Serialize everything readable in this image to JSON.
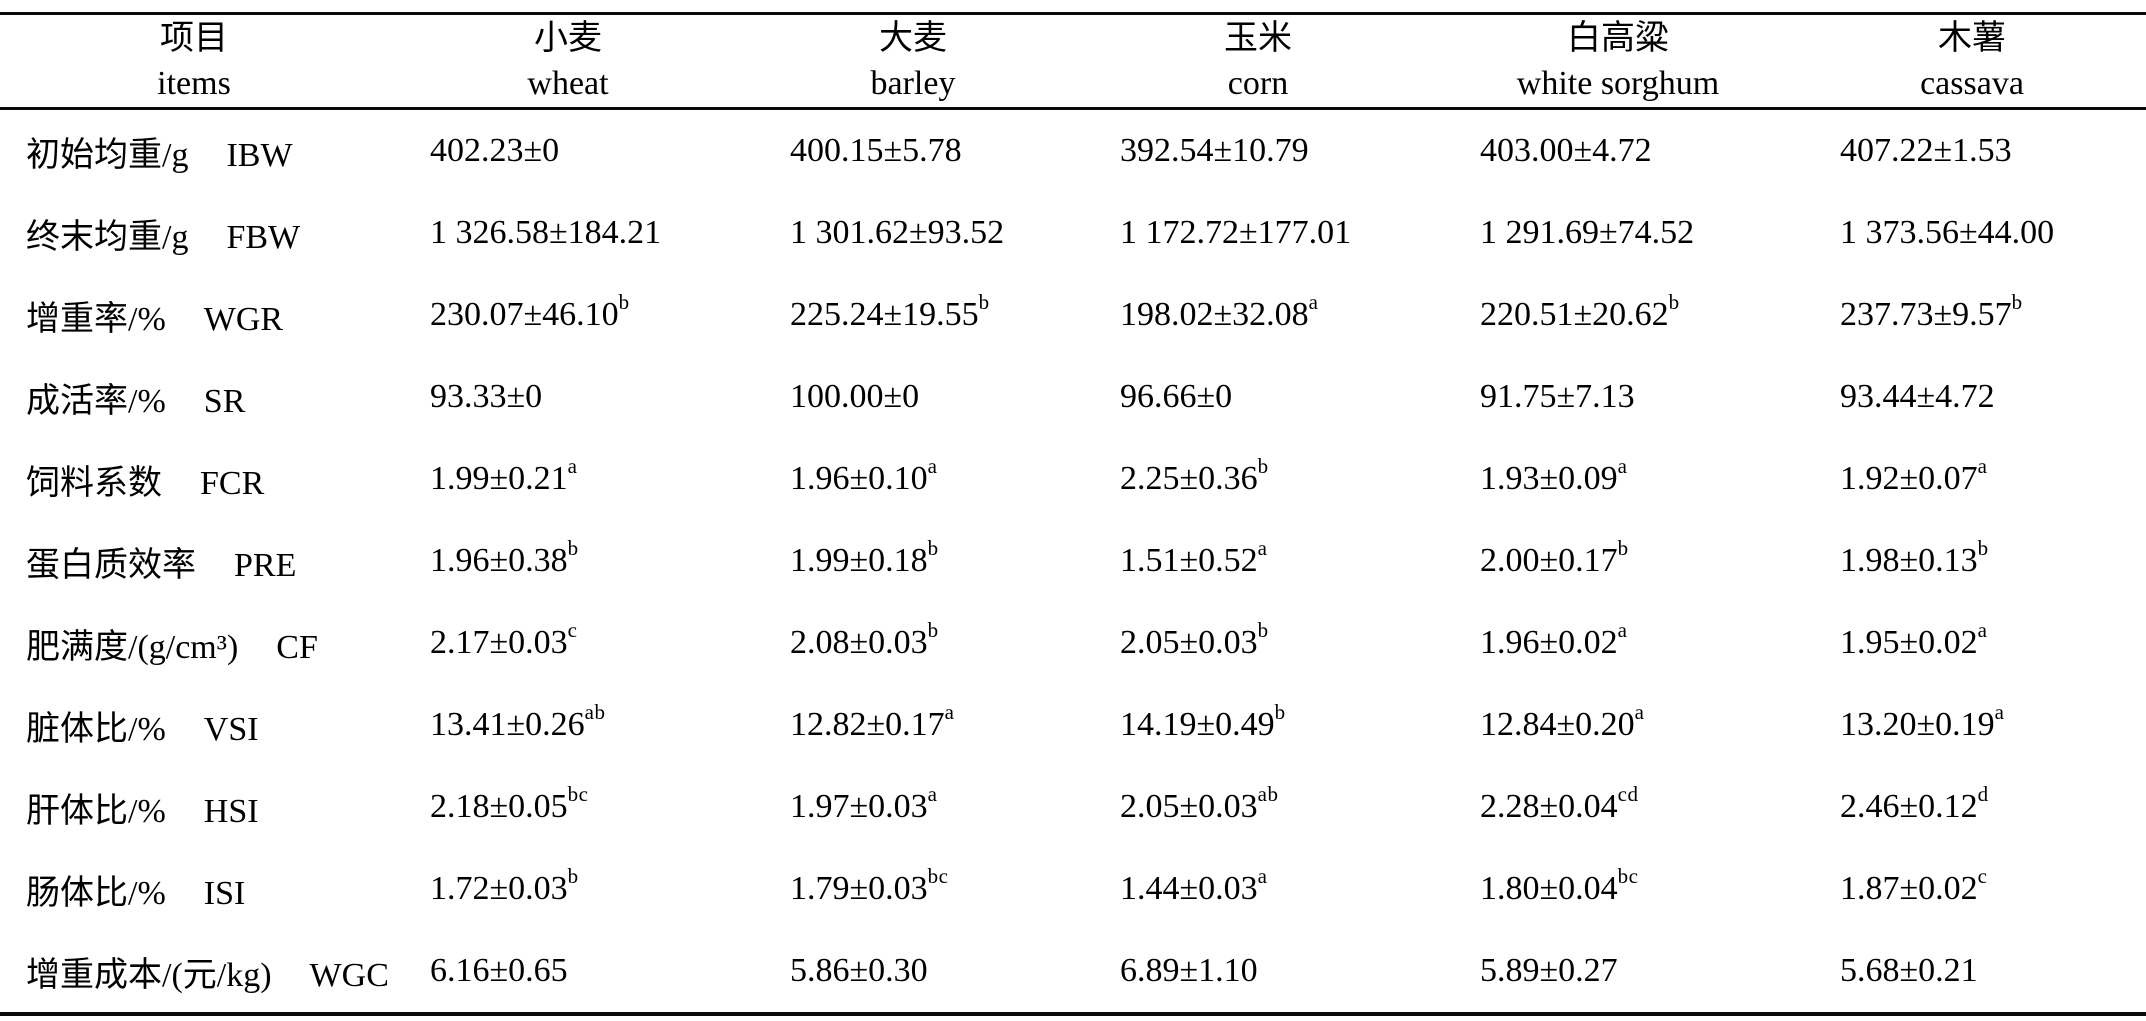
{
  "table": {
    "header": {
      "items_cn": "项目",
      "items_en": "items",
      "columns": [
        {
          "cn": "小麦",
          "en": "wheat"
        },
        {
          "cn": "大麦",
          "en": "barley"
        },
        {
          "cn": "玉米",
          "en": "corn"
        },
        {
          "cn": "白高粱",
          "en": "white sorghum"
        },
        {
          "cn": "木薯",
          "en": "cassava"
        }
      ]
    },
    "rows": [
      {
        "label_cn": "初始均重/g",
        "label_en": "IBW",
        "values": [
          "402.23±0",
          "400.15±5.78",
          "392.54±10.79",
          "403.00±4.72",
          "407.22±1.53"
        ]
      },
      {
        "label_cn": "终末均重/g",
        "label_en": "FBW",
        "values": [
          "1 326.58±184.21",
          "1 301.62±93.52",
          "1 172.72±177.01",
          "1 291.69±74.52",
          "1 373.56±44.00"
        ]
      },
      {
        "label_cn": "增重率/%",
        "label_en": "WGR",
        "values": [
          "230.07±46.10^b",
          "225.24±19.55^b",
          "198.02±32.08^a",
          "220.51±20.62^b",
          "237.73±9.57^b"
        ]
      },
      {
        "label_cn": "成活率/%",
        "label_en": "SR",
        "values": [
          "93.33±0",
          "100.00±0",
          "96.66±0",
          "91.75±7.13",
          "93.44±4.72"
        ]
      },
      {
        "label_cn": "饲料系数",
        "label_en": "FCR",
        "values": [
          "1.99±0.21^a",
          "1.96±0.10^a",
          "2.25±0.36^b",
          "1.93±0.09^a",
          "1.92±0.07^a"
        ]
      },
      {
        "label_cn": "蛋白质效率",
        "label_en": "PRE",
        "values": [
          "1.96±0.38^b",
          "1.99±0.18^b",
          "1.51±0.52^a",
          "2.00±0.17^b",
          "1.98±0.13^b"
        ]
      },
      {
        "label_cn": "肥满度/(g/cm³)",
        "label_en": "CF",
        "values": [
          "2.17±0.03^c",
          "2.08±0.03^b",
          "2.05±0.03^b",
          "1.96±0.02^a",
          "1.95±0.02^a"
        ]
      },
      {
        "label_cn": "脏体比/%",
        "label_en": "VSI",
        "values": [
          "13.41±0.26^ab",
          "12.82±0.17^a",
          "14.19±0.49^b",
          "12.84±0.20^a",
          "13.20±0.19^a"
        ]
      },
      {
        "label_cn": "肝体比/%",
        "label_en": "HSI",
        "values": [
          "2.18±0.05^bc",
          "1.97±0.03^a",
          "2.05±0.03^ab",
          "2.28±0.04^cd",
          "2.46±0.12^d"
        ]
      },
      {
        "label_cn": "肠体比/%",
        "label_en": "ISI",
        "values": [
          "1.72±0.03^b",
          "1.79±0.03^bc",
          "1.44±0.03^a",
          "1.80±0.04^bc",
          "1.87±0.02^c"
        ]
      },
      {
        "label_cn": "增重成本/(元/kg)",
        "label_en": "WGC",
        "values": [
          "6.16±0.65",
          "5.86±0.30",
          "6.89±1.10",
          "5.89±0.27",
          "5.68±0.21"
        ]
      }
    ]
  }
}
